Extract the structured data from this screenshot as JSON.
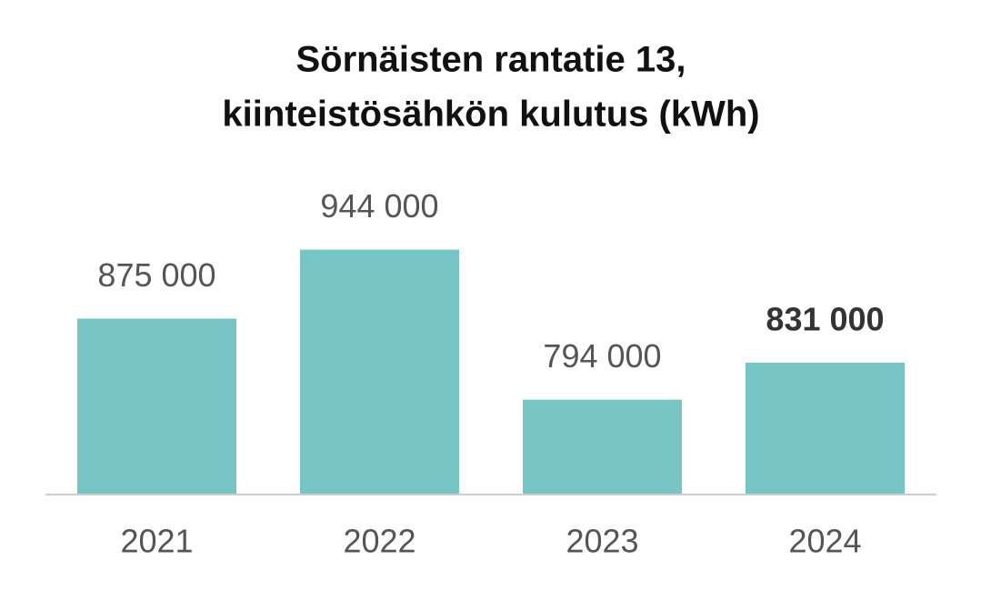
{
  "chart_data": {
    "type": "bar",
    "title": [
      "Sörnäisten rantatie 13,",
      "kiinteistösähkön kulutus (kWh)"
    ],
    "categories": [
      "2021",
      "2022",
      "2023",
      "2024"
    ],
    "values": [
      875000,
      944000,
      794000,
      831000
    ],
    "value_labels": [
      "875 000",
      "944 000",
      "794 000",
      "831 000"
    ],
    "color": "#76c4c3",
    "ylim": [
      700000,
      1000000
    ]
  }
}
